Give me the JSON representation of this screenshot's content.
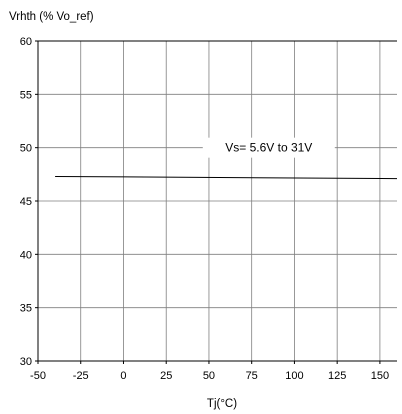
{
  "chart_data": {
    "type": "line",
    "ylabel": "Vrhth (% Vo_ref)",
    "xlabel": "Tj(°C)",
    "xlim": [
      -50,
      160
    ],
    "ylim": [
      30,
      60
    ],
    "x_ticks": [
      -50,
      -25,
      0,
      25,
      50,
      75,
      100,
      125,
      150
    ],
    "y_ticks": [
      30,
      35,
      40,
      45,
      50,
      55,
      60
    ],
    "grid": true,
    "series": [
      {
        "x": [
          -40,
          160
        ],
        "y": [
          47.3,
          47.1
        ],
        "color": "#000000"
      }
    ],
    "annotations": [
      {
        "text": "Vs= 5.6V to 31V",
        "x": 85,
        "y": 50
      }
    ]
  }
}
